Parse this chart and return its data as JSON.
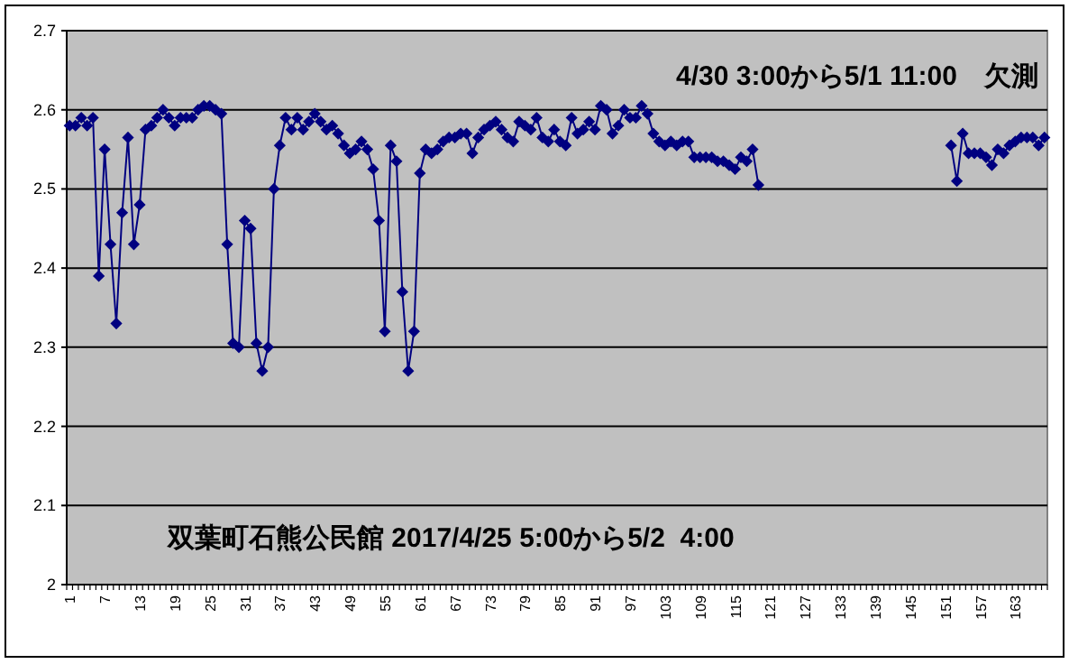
{
  "chart_data": {
    "type": "line",
    "title": "双葉町石熊公民館 2017/4/25 5:00から5/2  4:00",
    "annotations": [
      "4/30 3:00から5/1 11:00　欠測"
    ],
    "categories": [
      "1",
      null,
      null,
      null,
      null,
      null,
      "7",
      null,
      null,
      null,
      null,
      null,
      "13",
      null,
      null,
      null,
      null,
      null,
      "19",
      null,
      null,
      null,
      null,
      null,
      "25",
      null,
      null,
      null,
      null,
      null,
      "31",
      null,
      null,
      null,
      null,
      null,
      "37",
      null,
      null,
      null,
      null,
      null,
      "43",
      null,
      null,
      null,
      null,
      null,
      "49",
      null,
      null,
      null,
      null,
      null,
      "55",
      null,
      null,
      null,
      null,
      null,
      "61",
      null,
      null,
      null,
      null,
      null,
      "67",
      null,
      null,
      null,
      null,
      null,
      "73",
      null,
      null,
      null,
      null,
      null,
      "79",
      null,
      null,
      null,
      null,
      null,
      "85",
      null,
      null,
      null,
      null,
      null,
      "91",
      null,
      null,
      null,
      null,
      null,
      "97",
      null,
      null,
      null,
      null,
      null,
      "103",
      null,
      null,
      null,
      null,
      null,
      "109",
      null,
      null,
      null,
      null,
      null,
      "115",
      null,
      null,
      null,
      null,
      null,
      "121",
      null,
      null,
      null,
      null,
      null,
      "127",
      null,
      null,
      null,
      null,
      null,
      "133",
      null,
      null,
      null,
      null,
      null,
      "139",
      null,
      null,
      null,
      null,
      null,
      "145",
      null,
      null,
      null,
      null,
      null,
      "151",
      null,
      null,
      null,
      null,
      null,
      "157",
      null,
      null,
      null,
      null,
      null,
      "163",
      null,
      null,
      null,
      null,
      null
    ],
    "series": [
      {
        "color": "#000080",
        "values": [
          2.58,
          2.58,
          2.59,
          2.58,
          2.59,
          2.39,
          2.55,
          2.43,
          2.33,
          2.47,
          2.565,
          2.43,
          2.48,
          2.575,
          2.58,
          2.59,
          2.6,
          2.59,
          2.58,
          2.59,
          2.59,
          2.59,
          2.6,
          2.605,
          2.605,
          2.6,
          2.595,
          2.43,
          2.305,
          2.3,
          2.46,
          2.45,
          2.305,
          2.27,
          2.3,
          2.5,
          2.555,
          2.59,
          2.575,
          2.59,
          2.575,
          2.585,
          2.595,
          2.585,
          2.575,
          2.58,
          2.57,
          2.555,
          2.545,
          2.55,
          2.56,
          2.55,
          2.525,
          2.46,
          2.32,
          2.555,
          2.535,
          2.37,
          2.27,
          2.32,
          2.52,
          2.55,
          2.545,
          2.55,
          2.56,
          2.565,
          2.565,
          2.57,
          2.57,
          2.545,
          2.565,
          2.575,
          2.58,
          2.585,
          2.575,
          2.565,
          2.56,
          2.585,
          2.58,
          2.575,
          2.59,
          2.565,
          2.56,
          2.575,
          2.56,
          2.555,
          2.59,
          2.57,
          2.575,
          2.585,
          2.575,
          2.605,
          2.6,
          2.57,
          2.58,
          2.6,
          2.59,
          2.59,
          2.605,
          2.595,
          2.57,
          2.56,
          2.555,
          2.56,
          2.555,
          2.56,
          2.56,
          2.54,
          2.54,
          2.54,
          2.54,
          2.535,
          2.535,
          2.53,
          2.525,
          2.54,
          2.535,
          2.55,
          2.505,
          null,
          null,
          null,
          null,
          null,
          null,
          null,
          null,
          null,
          null,
          null,
          null,
          null,
          null,
          null,
          null,
          null,
          null,
          null,
          null,
          null,
          null,
          null,
          null,
          null,
          null,
          null,
          null,
          null,
          null,
          null,
          null,
          2.555,
          2.51,
          2.57,
          2.545,
          2.545,
          2.545,
          2.54,
          2.53,
          2.55,
          2.545,
          2.555,
          2.56,
          2.565,
          2.565,
          2.565,
          2.555,
          2.565
        ]
      }
    ],
    "ylim": [
      2,
      2.7
    ],
    "yticks": [
      2,
      2.1,
      2.2,
      2.3,
      2.4,
      2.5,
      2.6,
      2.7
    ],
    "grid": "y",
    "marker": "diamond"
  }
}
